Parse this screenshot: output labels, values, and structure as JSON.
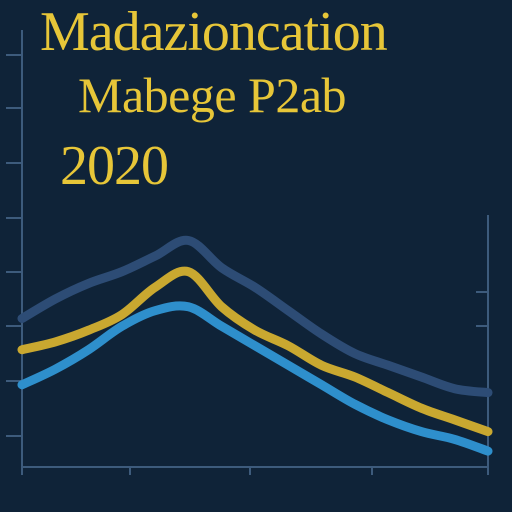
{
  "chart_data": {
    "type": "line",
    "title_lines": [
      "Madazioncation",
      "Mabege P2ab",
      "2020"
    ],
    "x": [
      0,
      1,
      2,
      3,
      4,
      5,
      6,
      7,
      8,
      9,
      10,
      11,
      12,
      13,
      14
    ],
    "xlim": [
      0,
      14
    ],
    "ylim": [
      0,
      100
    ],
    "grid": false,
    "series": [
      {
        "color": "#2d4c75",
        "values": [
          35,
          40,
          44,
          47,
          51,
          55,
          48,
          43,
          37,
          31,
          26,
          23,
          20,
          17,
          16
        ]
      },
      {
        "color": "#c9a830",
        "values": [
          27,
          29,
          32,
          36,
          43,
          47,
          38,
          32,
          28,
          23,
          20,
          16,
          12,
          9,
          6
        ]
      },
      {
        "color": "#2e8fcc",
        "values": [
          18,
          22,
          27,
          33,
          37,
          38,
          33,
          28,
          23,
          18,
          13,
          9,
          6,
          4,
          1
        ]
      }
    ]
  }
}
